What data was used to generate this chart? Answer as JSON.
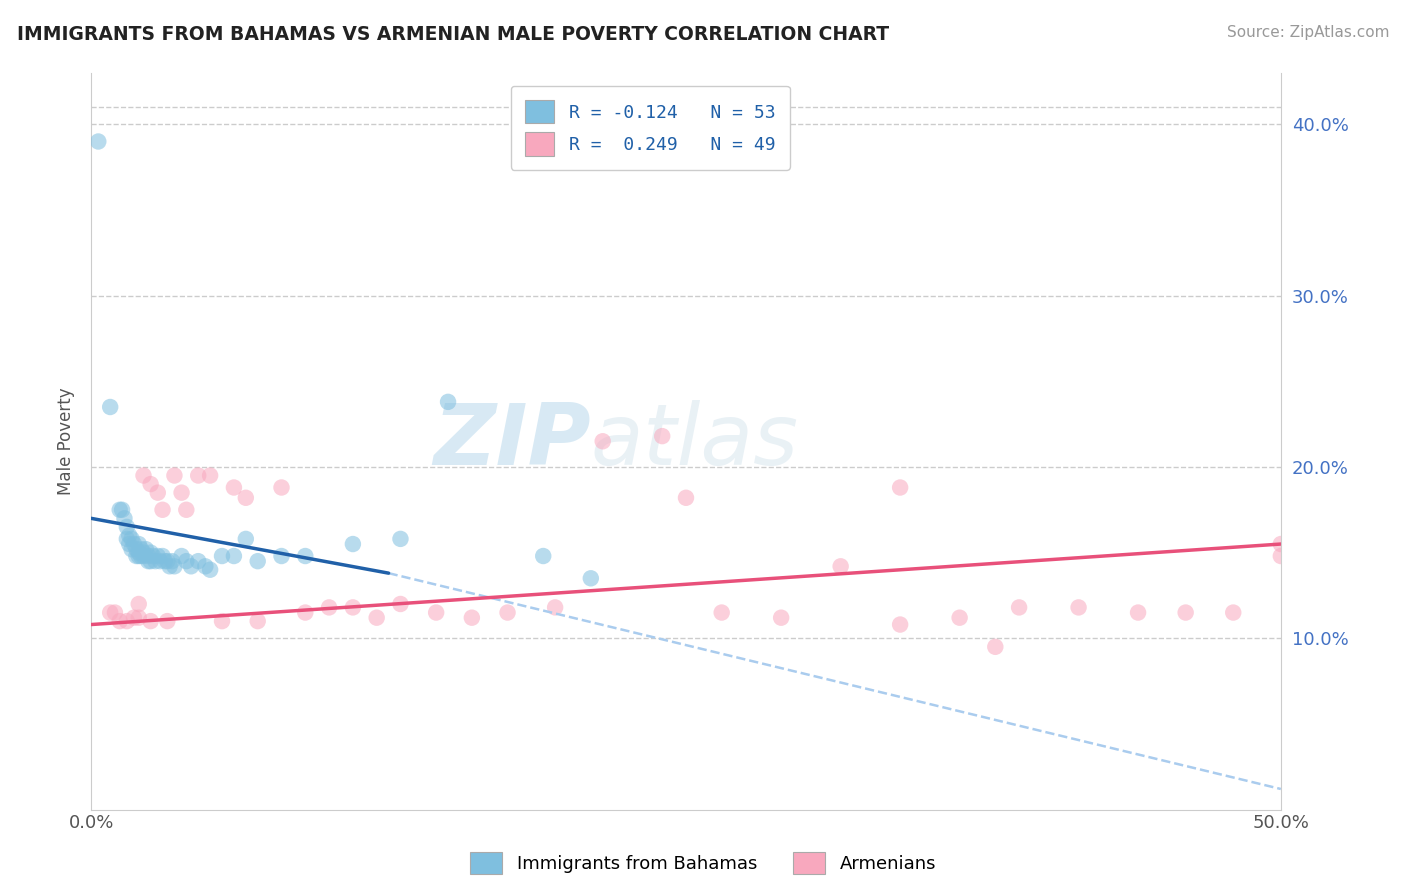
{
  "title": "IMMIGRANTS FROM BAHAMAS VS ARMENIAN MALE POVERTY CORRELATION CHART",
  "source": "Source: ZipAtlas.com",
  "ylabel": "Male Poverty",
  "xmin": 0.0,
  "xmax": 0.5,
  "ymin": 0.0,
  "ymax": 0.43,
  "yticks": [
    0.1,
    0.2,
    0.3,
    0.4
  ],
  "ytick_labels": [
    "10.0%",
    "20.0%",
    "30.0%",
    "40.0%"
  ],
  "color_blue": "#7fbfdf",
  "color_pink": "#f8a8be",
  "color_blue_line": "#2060a8",
  "color_pink_line": "#e8507a",
  "color_dashed": "#aaccee",
  "watermark_zip": "ZIP",
  "watermark_atlas": "atlas",
  "label_bahamas": "Immigrants from Bahamas",
  "label_armenians": "Armenians",
  "legend_text1": "R = -0.124   N = 53",
  "legend_text2": "R =  0.249   N = 49",
  "bahamas_x": [
    0.003,
    0.008,
    0.012,
    0.013,
    0.014,
    0.015,
    0.015,
    0.016,
    0.016,
    0.017,
    0.017,
    0.018,
    0.019,
    0.019,
    0.02,
    0.02,
    0.02,
    0.021,
    0.021,
    0.022,
    0.022,
    0.023,
    0.024,
    0.024,
    0.025,
    0.025,
    0.026,
    0.027,
    0.028,
    0.029,
    0.03,
    0.031,
    0.032,
    0.033,
    0.034,
    0.035,
    0.038,
    0.04,
    0.042,
    0.045,
    0.048,
    0.05,
    0.055,
    0.06,
    0.065,
    0.07,
    0.08,
    0.09,
    0.11,
    0.13,
    0.15,
    0.19,
    0.21
  ],
  "bahamas_y": [
    0.39,
    0.235,
    0.175,
    0.175,
    0.17,
    0.165,
    0.158,
    0.16,
    0.155,
    0.158,
    0.152,
    0.155,
    0.152,
    0.148,
    0.155,
    0.15,
    0.148,
    0.152,
    0.148,
    0.15,
    0.148,
    0.152,
    0.148,
    0.145,
    0.15,
    0.145,
    0.148,
    0.145,
    0.148,
    0.145,
    0.148,
    0.145,
    0.145,
    0.142,
    0.145,
    0.142,
    0.148,
    0.145,
    0.142,
    0.145,
    0.142,
    0.14,
    0.148,
    0.148,
    0.158,
    0.145,
    0.148,
    0.148,
    0.155,
    0.158,
    0.238,
    0.148,
    0.135
  ],
  "armenians_x": [
    0.008,
    0.01,
    0.012,
    0.015,
    0.018,
    0.02,
    0.02,
    0.022,
    0.025,
    0.025,
    0.028,
    0.03,
    0.032,
    0.035,
    0.038,
    0.04,
    0.045,
    0.05,
    0.055,
    0.06,
    0.065,
    0.07,
    0.08,
    0.09,
    0.1,
    0.11,
    0.12,
    0.13,
    0.145,
    0.16,
    0.175,
    0.195,
    0.215,
    0.24,
    0.265,
    0.29,
    0.315,
    0.34,
    0.365,
    0.39,
    0.415,
    0.44,
    0.46,
    0.48,
    0.5,
    0.34,
    0.38,
    0.25,
    0.5
  ],
  "armenians_y": [
    0.115,
    0.115,
    0.11,
    0.11,
    0.112,
    0.12,
    0.112,
    0.195,
    0.19,
    0.11,
    0.185,
    0.175,
    0.11,
    0.195,
    0.185,
    0.175,
    0.195,
    0.195,
    0.11,
    0.188,
    0.182,
    0.11,
    0.188,
    0.115,
    0.118,
    0.118,
    0.112,
    0.12,
    0.115,
    0.112,
    0.115,
    0.118,
    0.215,
    0.218,
    0.115,
    0.112,
    0.142,
    0.188,
    0.112,
    0.118,
    0.118,
    0.115,
    0.115,
    0.115,
    0.148,
    0.108,
    0.095,
    0.182,
    0.155
  ],
  "blue_line_x": [
    0.0,
    0.125
  ],
  "blue_line_y": [
    0.17,
    0.138
  ],
  "dashed_line_x": [
    0.125,
    0.5
  ],
  "dashed_line_y": [
    0.138,
    0.012
  ],
  "pink_line_x": [
    0.0,
    0.5
  ],
  "pink_line_y": [
    0.108,
    0.155
  ]
}
